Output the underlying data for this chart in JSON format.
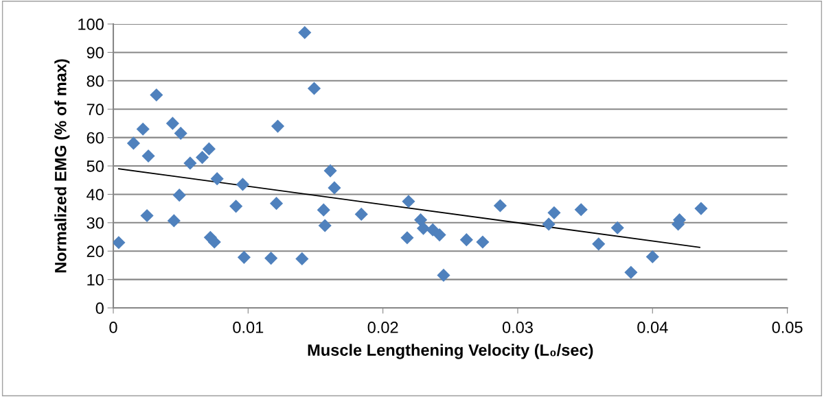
{
  "chart_data": {
    "type": "scatter",
    "xlabel": "Muscle Lengthening Velocity (L₀/sec)",
    "ylabel": "Normalized EMG (% of max)",
    "xlim": [
      0,
      0.05
    ],
    "xticks": [
      0,
      0.01,
      0.02,
      0.03,
      0.04,
      0.05
    ],
    "ylim": [
      0,
      100
    ],
    "yticks": [
      0,
      10,
      20,
      30,
      40,
      50,
      60,
      70,
      80,
      90,
      100
    ],
    "grid": "y",
    "marker": "diamond",
    "series": [
      {
        "color": "#4f81bd",
        "x": [
          0.0004,
          0.0015,
          0.0022,
          0.0025,
          0.0026,
          0.0032,
          0.0044,
          0.0045,
          0.0049,
          0.005,
          0.0057,
          0.0066,
          0.0071,
          0.0072,
          0.0075,
          0.0077,
          0.0091,
          0.0096,
          0.0097,
          0.0117,
          0.0121,
          0.0122,
          0.014,
          0.0142,
          0.0149,
          0.0156,
          0.0157,
          0.0161,
          0.0164,
          0.0184,
          0.0218,
          0.0219,
          0.0228,
          0.023,
          0.0237,
          0.0242,
          0.0245,
          0.0262,
          0.0274,
          0.0287,
          0.0323,
          0.0327,
          0.0347,
          0.036,
          0.0374,
          0.0384,
          0.04,
          0.0419,
          0.042,
          0.0436
        ],
        "values": [
          23,
          58,
          63,
          32.5,
          53.5,
          75,
          65,
          30.7,
          39.7,
          61.5,
          51,
          53,
          56,
          24.8,
          23.2,
          45.5,
          35.8,
          43.5,
          17.8,
          17.5,
          36.8,
          64,
          17.3,
          97,
          77.3,
          34.5,
          29,
          48.3,
          42.3,
          33,
          24.7,
          37.5,
          31,
          28,
          27.5,
          25.7,
          11.5,
          24,
          23.2,
          36,
          29.5,
          33.5,
          34.6,
          22.5,
          28.2,
          12.5,
          18,
          29.5,
          31,
          35
        ]
      },
      {
        "type": "line",
        "color": "#000000",
        "marker": "none",
        "x": [
          0.0004,
          0.0435
        ],
        "values": [
          49,
          21.3
        ]
      }
    ]
  }
}
